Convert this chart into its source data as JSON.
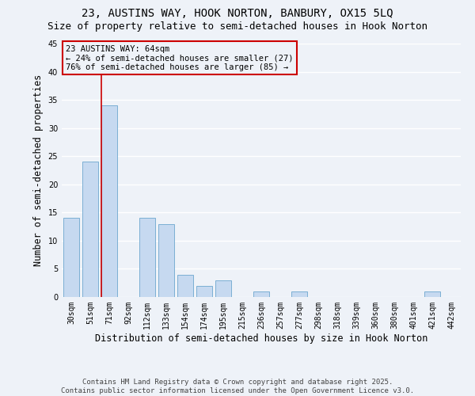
{
  "title1": "23, AUSTINS WAY, HOOK NORTON, BANBURY, OX15 5LQ",
  "title2": "Size of property relative to semi-detached houses in Hook Norton",
  "xlabel": "Distribution of semi-detached houses by size in Hook Norton",
  "ylabel": "Number of semi-detached properties",
  "categories": [
    "30sqm",
    "51sqm",
    "71sqm",
    "92sqm",
    "112sqm",
    "133sqm",
    "154sqm",
    "174sqm",
    "195sqm",
    "215sqm",
    "236sqm",
    "257sqm",
    "277sqm",
    "298sqm",
    "318sqm",
    "339sqm",
    "360sqm",
    "380sqm",
    "401sqm",
    "421sqm",
    "442sqm"
  ],
  "values": [
    14,
    24,
    34,
    0,
    14,
    13,
    4,
    2,
    3,
    0,
    1,
    0,
    1,
    0,
    0,
    0,
    0,
    0,
    0,
    1,
    0
  ],
  "bar_color": "#c6d9f0",
  "bar_edge_color": "#7bafd4",
  "marker_bar_index": 2,
  "marker_color": "#cc0000",
  "annotation_title": "23 AUSTINS WAY: 64sqm",
  "annotation_line1": "← 24% of semi-detached houses are smaller (27)",
  "annotation_line2": "76% of semi-detached houses are larger (85) →",
  "annotation_box_color": "#cc0000",
  "annotation_text_color": "#000000",
  "footer1": "Contains HM Land Registry data © Crown copyright and database right 2025.",
  "footer2": "Contains public sector information licensed under the Open Government Licence v3.0.",
  "ylim": [
    0,
    45
  ],
  "yticks": [
    0,
    5,
    10,
    15,
    20,
    25,
    30,
    35,
    40,
    45
  ],
  "bg_color": "#eef2f8",
  "grid_color": "#ffffff",
  "title_fontsize": 10,
  "subtitle_fontsize": 9,
  "tick_fontsize": 7,
  "label_fontsize": 8.5,
  "annotation_fontsize": 7.5,
  "footer_fontsize": 6.5
}
